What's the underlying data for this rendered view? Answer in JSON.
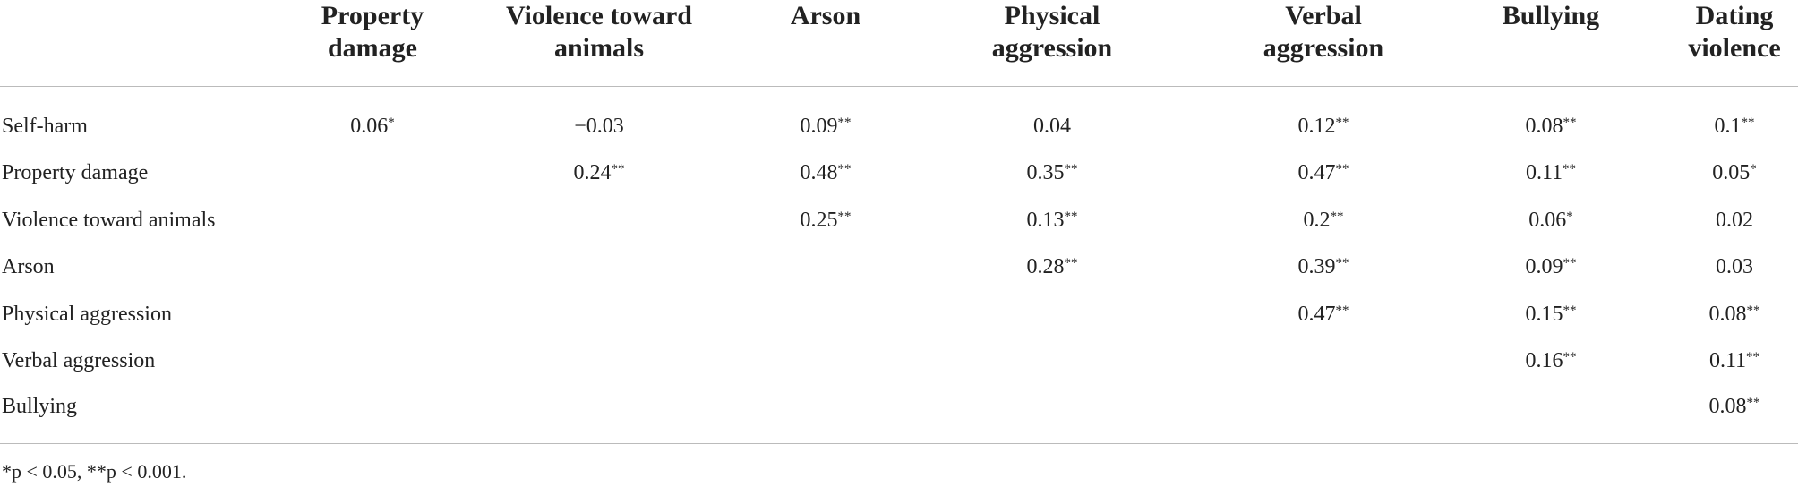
{
  "table": {
    "columns": [
      "Property damage",
      "Violence toward animals",
      "Arson",
      "Physical aggression",
      "Verbal aggression",
      "Bullying",
      "Dating violence"
    ],
    "rows": [
      {
        "label": "Self-harm",
        "cells": [
          {
            "value": "0.06",
            "sig": "*"
          },
          {
            "value": "−0.03",
            "sig": null
          },
          {
            "value": "0.09",
            "sig": "**"
          },
          {
            "value": "0.04",
            "sig": null
          },
          {
            "value": "0.12",
            "sig": "**"
          },
          {
            "value": "0.08",
            "sig": "**"
          },
          {
            "value": "0.1",
            "sig": "**"
          }
        ]
      },
      {
        "label": "Property damage",
        "cells": [
          null,
          {
            "value": "0.24",
            "sig": "**"
          },
          {
            "value": "0.48",
            "sig": "**"
          },
          {
            "value": "0.35",
            "sig": "**"
          },
          {
            "value": "0.47",
            "sig": "**"
          },
          {
            "value": "0.11",
            "sig": "**"
          },
          {
            "value": "0.05",
            "sig": "*"
          }
        ]
      },
      {
        "label": "Violence toward animals",
        "cells": [
          null,
          null,
          {
            "value": "0.25",
            "sig": "**"
          },
          {
            "value": "0.13",
            "sig": "**"
          },
          {
            "value": "0.2",
            "sig": "**"
          },
          {
            "value": "0.06",
            "sig": "*"
          },
          {
            "value": "0.02",
            "sig": null
          }
        ]
      },
      {
        "label": "Arson",
        "cells": [
          null,
          null,
          null,
          {
            "value": "0.28",
            "sig": "**"
          },
          {
            "value": "0.39",
            "sig": "**"
          },
          {
            "value": "0.09",
            "sig": "**"
          },
          {
            "value": "0.03",
            "sig": null
          }
        ]
      },
      {
        "label": "Physical aggression",
        "cells": [
          null,
          null,
          null,
          null,
          {
            "value": "0.47",
            "sig": "**"
          },
          {
            "value": "0.15",
            "sig": "**"
          },
          {
            "value": "0.08",
            "sig": "**"
          }
        ]
      },
      {
        "label": "Verbal aggression",
        "cells": [
          null,
          null,
          null,
          null,
          null,
          {
            "value": "0.16",
            "sig": "**"
          },
          {
            "value": "0.11",
            "sig": "**"
          }
        ]
      },
      {
        "label": "Bullying",
        "cells": [
          null,
          null,
          null,
          null,
          null,
          null,
          {
            "value": "0.08",
            "sig": "**"
          }
        ]
      }
    ],
    "footnote": "*p < 0.05, **p < 0.001."
  }
}
